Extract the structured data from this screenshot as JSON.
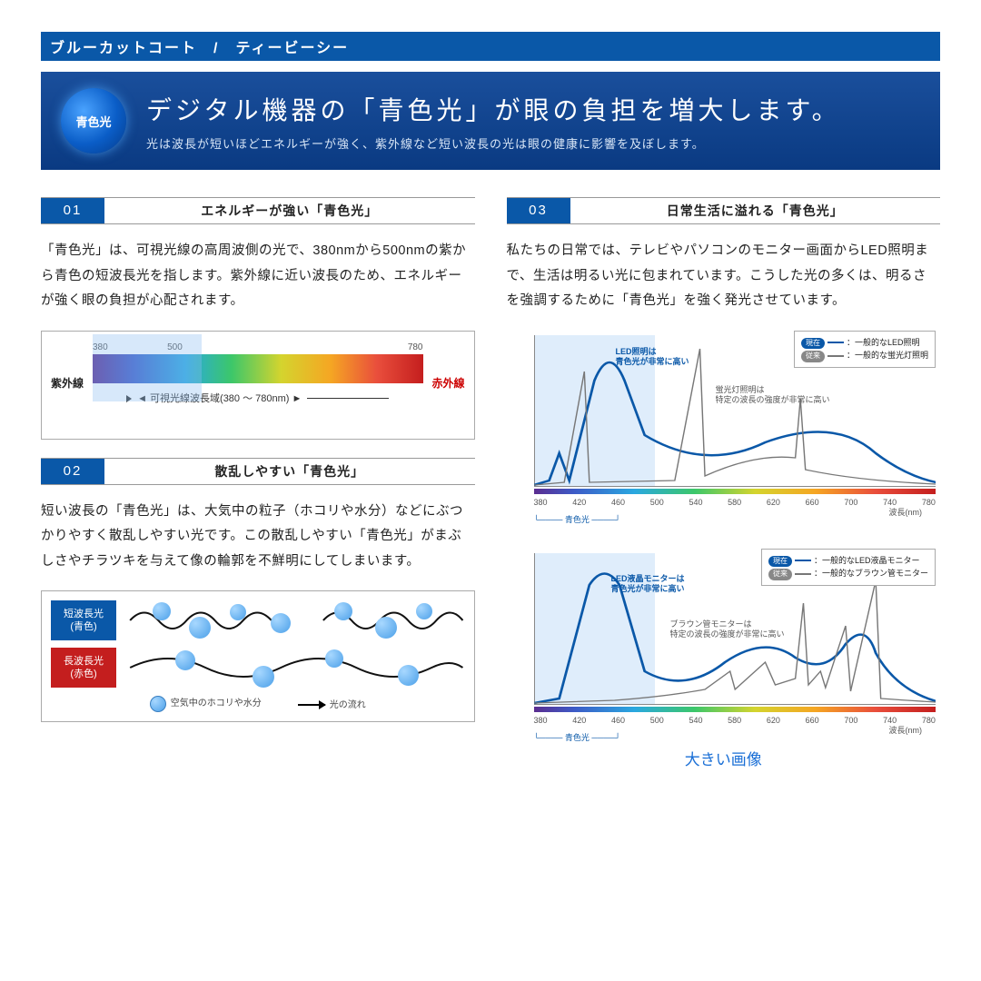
{
  "topbar": "ブルーカットコート　/　ティービーシー",
  "hero": {
    "badge": "青色光",
    "title": "デジタル機器の「青色光」が眼の負担を増大します。",
    "sub": "光は波長が短いほどエネルギーが強く、紫外線など短い波長の光は眼の健康に影響を及ぼします。"
  },
  "b1": {
    "num": "01",
    "title": "エネルギーが強い「青色光」",
    "text": "「青色光」は、可視光線の高周波側の光で、380nmから500nmの紫から青色の短波長光を指します。紫外線に近い波長のため、エネルギーが強く眼の負担が心配されます。"
  },
  "b2": {
    "num": "02",
    "title": "散乱しやすい「青色光」",
    "text": "短い波長の「青色光」は、大気中の粒子（ホコリや水分）などにぶつかりやすく散乱しやすい光です。この散乱しやすい「青色光」がまぶしさやチラツキを与えて像の輪郭を不鮮明にしてしまいます。"
  },
  "b3": {
    "num": "03",
    "title": "日常生活に溢れる「青色光」",
    "text": "私たちの日常では、テレビやパソコンのモニター画面からLED照明まで、生活は明るい光に包まれています。こうした光の多くは、明るさを強調するために「青色光」を強く発光させています。"
  },
  "spectrum": {
    "left": "紫外線",
    "right": "赤外線",
    "n1": "380",
    "n2": "500",
    "n3": "780",
    "range": "可視光線波長域(380 〜 780nm)"
  },
  "scatter": {
    "blue1": "短波長光",
    "blue2": "(青色)",
    "red1": "長波長光",
    "red2": "(赤色)",
    "lg1": "空気中のホコリや水分",
    "lg2": "光の流れ"
  },
  "chart1": {
    "annot_blue": "LED照明は\n青色光が非常に高い",
    "annot_gray": "蛍光灯照明は\n特定の波長の強度が非常に高い",
    "lg_b_badge": "現在",
    "lg_b": "：一般的なLED照明",
    "lg_g_badge": "従来",
    "lg_g": "：一般的な蛍光灯照明",
    "brace": "青色光",
    "xlabel": "波長(nm)",
    "ticks": [
      "380",
      "420",
      "460",
      "500",
      "540",
      "580",
      "620",
      "660",
      "700",
      "740",
      "780"
    ]
  },
  "chart2": {
    "annot_blue": "LED液晶モニターは\n青色光が非常に高い",
    "annot_gray": "ブラウン管モニターは\n特定の波長の強度が非常に高い",
    "lg_b_badge": "現在",
    "lg_b": "：一般的なLED液晶モニター",
    "lg_g_badge": "従来",
    "lg_g": "：一般的なブラウン管モニター",
    "brace": "青色光",
    "xlabel": "波長(nm)",
    "ticks": [
      "380",
      "420",
      "460",
      "500",
      "540",
      "580",
      "620",
      "660",
      "700",
      "740",
      "780"
    ]
  },
  "biglink": "大きい画像",
  "colors": {
    "brand": "#0a58a8",
    "red": "#c41e1e",
    "link": "#1a6fd6",
    "gray": "#777"
  }
}
